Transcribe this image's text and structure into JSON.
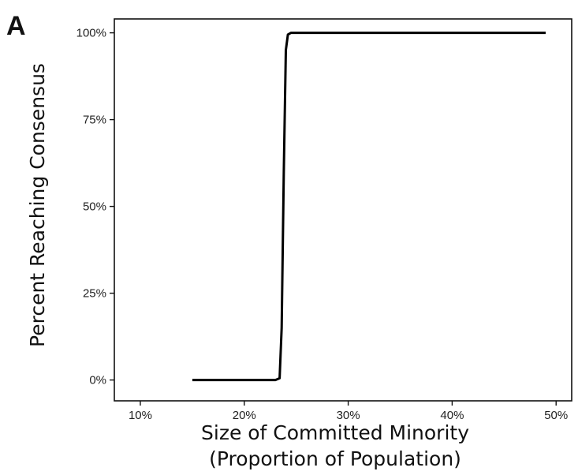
{
  "panel_label": "A",
  "chart_data": {
    "type": "line",
    "title": "",
    "xlabel": "Size of Committed Minority",
    "xlabel_sub": "(Proportion of Population)",
    "ylabel": "Percent Reaching Consensus",
    "xlim": [
      7.5,
      51.5
    ],
    "ylim": [
      -6,
      104
    ],
    "x_ticks": [
      10,
      20,
      30,
      40,
      50
    ],
    "x_tick_labels": [
      "10%",
      "20%",
      "30%",
      "40%",
      "50%"
    ],
    "y_ticks": [
      0,
      25,
      50,
      75,
      100
    ],
    "y_tick_labels": [
      "0%",
      "25%",
      "50%",
      "75%",
      "100%"
    ],
    "grid": false,
    "series": [
      {
        "color": "#000000",
        "x": [
          15,
          23.0,
          23.4,
          23.6,
          23.8,
          24.0,
          24.2,
          24.5,
          49
        ],
        "y": [
          0,
          0,
          0.5,
          15,
          60,
          95,
          99.5,
          100,
          100
        ]
      }
    ]
  }
}
